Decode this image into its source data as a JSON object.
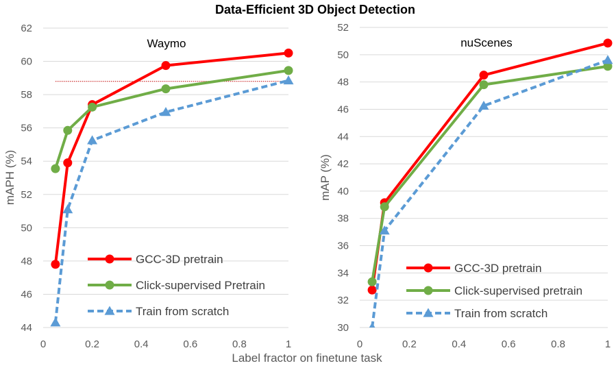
{
  "figure": {
    "title": "Data-Efficient 3D Object Detection",
    "xlabel": "Label fractor on finetune task"
  },
  "chart_data": [
    {
      "type": "line",
      "title": "Waymo",
      "xlabel": "Label fractor on finetune task",
      "ylabel": "mAPH (%)",
      "xlim": [
        0,
        1
      ],
      "ylim": [
        44,
        62
      ],
      "xticks": [
        "0",
        "0.2",
        "0.4",
        "0.6",
        "0.8",
        "1"
      ],
      "xtick_values": [
        0,
        0.2,
        0.4,
        0.6,
        0.8,
        1
      ],
      "yticks": [
        "44",
        "46",
        "48",
        "50",
        "52",
        "54",
        "56",
        "58",
        "60",
        "62"
      ],
      "ytick_values": [
        44,
        46,
        48,
        50,
        52,
        54,
        56,
        58,
        60,
        62
      ],
      "grid": "horizontal",
      "reference_line": {
        "y": 58.8,
        "x": [
          0.05,
          1
        ],
        "color": "#C00000",
        "style": "dotted"
      },
      "legend": {
        "placement": "bottom-right"
      },
      "series": [
        {
          "name": "GCC-3D pretrain",
          "color": "#FF0000",
          "marker": "circle",
          "dash": "solid",
          "x": [
            0.05,
            0.1,
            0.2,
            0.5,
            1
          ],
          "y": [
            47.8,
            53.9,
            57.4,
            59.75,
            60.5
          ]
        },
        {
          "name": "Click-supervised Pretrain",
          "color": "#70AD47",
          "marker": "circle",
          "dash": "solid",
          "x": [
            0.05,
            0.1,
            0.2,
            0.5,
            1
          ],
          "y": [
            53.55,
            55.85,
            57.25,
            58.35,
            59.45
          ]
        },
        {
          "name": "Train from scratch",
          "color": "#5B9BD5",
          "marker": "triangle",
          "dash": "dashed",
          "x": [
            0.05,
            0.1,
            0.2,
            0.5,
            1
          ],
          "y": [
            44.3,
            51.1,
            55.25,
            56.95,
            58.85
          ]
        }
      ]
    },
    {
      "type": "line",
      "title": "nuScenes",
      "xlabel": "Label fractor on finetune task",
      "ylabel": "mAP (%)",
      "xlim": [
        0,
        1
      ],
      "ylim": [
        30,
        52
      ],
      "xticks": [
        "0",
        "0.2",
        "0.4",
        "0.6",
        "0.8",
        "1"
      ],
      "xtick_values": [
        0,
        0.2,
        0.4,
        0.6,
        0.8,
        1
      ],
      "yticks": [
        "30",
        "32",
        "34",
        "36",
        "38",
        "40",
        "42",
        "44",
        "46",
        "48",
        "50",
        "52"
      ],
      "ytick_values": [
        30,
        32,
        34,
        36,
        38,
        40,
        42,
        44,
        46,
        48,
        50,
        52
      ],
      "grid": "horizontal",
      "legend": {
        "placement": "bottom-right"
      },
      "series": [
        {
          "name": "GCC-3D pretrain",
          "color": "#FF0000",
          "marker": "circle",
          "dash": "solid",
          "x": [
            0.05,
            0.1,
            0.5,
            1
          ],
          "y": [
            32.75,
            39.15,
            48.5,
            50.85
          ]
        },
        {
          "name": "Click-supervised pretrain",
          "color": "#70AD47",
          "marker": "circle",
          "dash": "solid",
          "x": [
            0.05,
            0.1,
            0.5,
            1
          ],
          "y": [
            33.35,
            38.85,
            47.8,
            49.15
          ]
        },
        {
          "name": "Train from scratch",
          "color": "#5B9BD5",
          "marker": "triangle",
          "dash": "dashed",
          "x": [
            0.05,
            0.1,
            0.5,
            1
          ],
          "y": [
            30,
            37.1,
            46.25,
            49.6
          ]
        }
      ]
    }
  ]
}
